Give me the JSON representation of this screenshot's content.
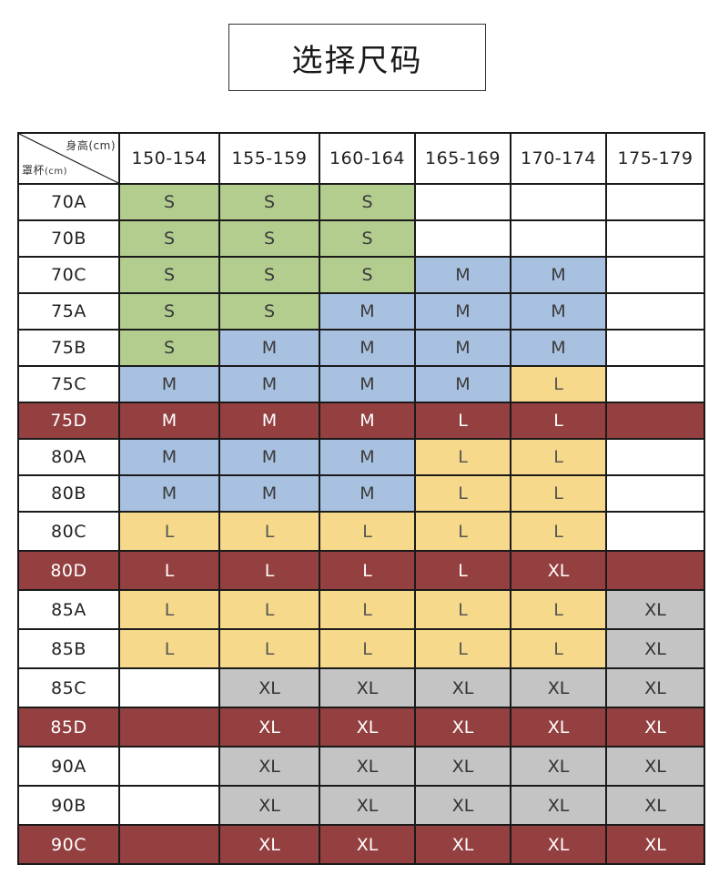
{
  "title": "选择尺码",
  "corner": {
    "height_label": "身高",
    "height_unit": "(cm)",
    "cup_label": "罩杯",
    "cup_unit": "(cm)"
  },
  "height_ranges": [
    "150-154",
    "155-159",
    "160-164",
    "165-169",
    "170-174",
    "175-179"
  ],
  "colors": {
    "S": "#b3cd8f",
    "M": "#a9c1e0",
    "L": "#f6d98a",
    "XL": "#c4c4c4",
    "highlight_row": "#943f40",
    "empty": "#ffffff"
  },
  "rows": [
    {
      "band": "70A",
      "highlight": false,
      "sizes": [
        "S",
        "S",
        "S",
        "",
        "",
        ""
      ]
    },
    {
      "band": "70B",
      "highlight": false,
      "sizes": [
        "S",
        "S",
        "S",
        "",
        "",
        ""
      ]
    },
    {
      "band": "70C",
      "highlight": false,
      "sizes": [
        "S",
        "S",
        "S",
        "M",
        "M",
        ""
      ]
    },
    {
      "band": "75A",
      "highlight": false,
      "sizes": [
        "S",
        "S",
        "M",
        "M",
        "M",
        ""
      ]
    },
    {
      "band": "75B",
      "highlight": false,
      "sizes": [
        "S",
        "M",
        "M",
        "M",
        "M",
        ""
      ]
    },
    {
      "band": "75C",
      "highlight": false,
      "sizes": [
        "M",
        "M",
        "M",
        "M",
        "L",
        ""
      ]
    },
    {
      "band": "75D",
      "highlight": true,
      "sizes": [
        "M",
        "M",
        "M",
        "L",
        "L",
        ""
      ]
    },
    {
      "band": "80A",
      "highlight": false,
      "sizes": [
        "M",
        "M",
        "M",
        "L",
        "L",
        ""
      ]
    },
    {
      "band": "80B",
      "highlight": false,
      "sizes": [
        "M",
        "M",
        "M",
        "L",
        "L",
        ""
      ]
    },
    {
      "band": "80C",
      "highlight": false,
      "sizes": [
        "L",
        "L",
        "L",
        "L",
        "L",
        ""
      ]
    },
    {
      "band": "80D",
      "highlight": true,
      "sizes": [
        "L",
        "L",
        "L",
        "L",
        "XL",
        ""
      ]
    },
    {
      "band": "85A",
      "highlight": false,
      "sizes": [
        "L",
        "L",
        "L",
        "L",
        "L",
        "XL"
      ]
    },
    {
      "band": "85B",
      "highlight": false,
      "sizes": [
        "L",
        "L",
        "L",
        "L",
        "L",
        "XL"
      ]
    },
    {
      "band": "85C",
      "highlight": false,
      "sizes": [
        "",
        "XL",
        "XL",
        "XL",
        "XL",
        "XL"
      ]
    },
    {
      "band": "85D",
      "highlight": true,
      "sizes": [
        "",
        "XL",
        "XL",
        "XL",
        "XL",
        "XL"
      ]
    },
    {
      "band": "90A",
      "highlight": false,
      "sizes": [
        "",
        "XL",
        "XL",
        "XL",
        "XL",
        "XL"
      ]
    },
    {
      "band": "90B",
      "highlight": false,
      "sizes": [
        "",
        "XL",
        "XL",
        "XL",
        "XL",
        "XL"
      ]
    },
    {
      "band": "90C",
      "highlight": true,
      "sizes": [
        "",
        "XL",
        "XL",
        "XL",
        "XL",
        "XL"
      ]
    }
  ]
}
